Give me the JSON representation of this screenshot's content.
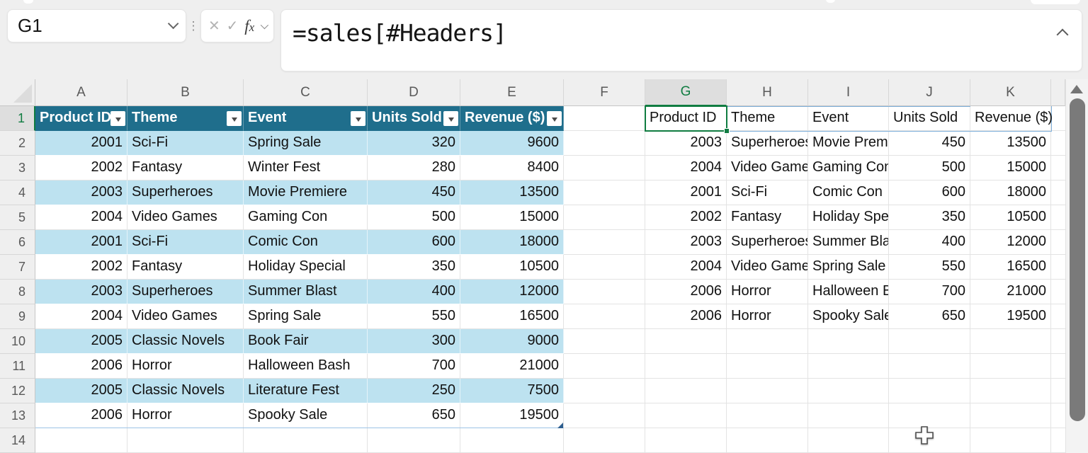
{
  "formula_bar": {
    "name_box": {
      "value": "G1"
    },
    "buttons": {
      "cancel": "✕",
      "enter": "✓",
      "insert_function_f": "f",
      "insert_function_x": "x"
    },
    "formula": "=sales[#Headers]"
  },
  "grid": {
    "column_letters": [
      "A",
      "B",
      "C",
      "D",
      "E",
      "F",
      "G",
      "H",
      "I",
      "J",
      "K"
    ],
    "row_numbers": [
      1,
      2,
      3,
      4,
      5,
      6,
      7,
      8,
      9,
      10,
      11,
      12,
      13,
      14
    ],
    "active": {
      "cell": "G1",
      "column": "G",
      "row": 1
    },
    "table": {
      "headers": [
        "Product ID",
        "Theme",
        "Event",
        "Units Sold",
        "Revenue ($)"
      ],
      "rows": [
        [
          2001,
          "Sci-Fi",
          "Spring Sale",
          320,
          9600
        ],
        [
          2002,
          "Fantasy",
          "Winter Fest",
          280,
          8400
        ],
        [
          2003,
          "Superheroes",
          "Movie Premiere",
          450,
          13500
        ],
        [
          2004,
          "Video Games",
          "Gaming Con",
          500,
          15000
        ],
        [
          2001,
          "Sci-Fi",
          "Comic Con",
          600,
          18000
        ],
        [
          2002,
          "Fantasy",
          "Holiday Special",
          350,
          10500
        ],
        [
          2003,
          "Superheroes",
          "Summer Blast",
          400,
          12000
        ],
        [
          2004,
          "Video Games",
          "Spring Sale",
          550,
          16500
        ],
        [
          2005,
          "Classic Novels",
          "Book Fair",
          300,
          9000
        ],
        [
          2006,
          "Horror",
          "Halloween Bash",
          700,
          21000
        ],
        [
          2005,
          "Classic Novels",
          "Literature Fest",
          250,
          7500
        ],
        [
          2006,
          "Horror",
          "Spooky Sale",
          650,
          19500
        ]
      ]
    },
    "spill": {
      "headers": [
        "Product ID",
        "Theme",
        "Event",
        "Units Sold",
        "Revenue ($)"
      ],
      "rows": [
        [
          2003,
          "Superheroes",
          "Movie Premiere",
          450,
          13500
        ],
        [
          2004,
          "Video Games",
          "Gaming Con",
          500,
          15000
        ],
        [
          2001,
          "Sci-Fi",
          "Comic Con",
          600,
          18000
        ],
        [
          2002,
          "Fantasy",
          "Holiday Special",
          350,
          10500
        ],
        [
          2003,
          "Superheroes",
          "Summer Blast",
          400,
          12000
        ],
        [
          2004,
          "Video Games",
          "Spring Sale",
          550,
          16500
        ],
        [
          2006,
          "Horror",
          "Halloween Bash",
          700,
          21000
        ],
        [
          2006,
          "Horror",
          "Spooky Sale",
          650,
          19500
        ]
      ]
    }
  },
  "colors": {
    "table_header_bg": "#1F6E8C",
    "band_fill": "#BDE2F0",
    "selection_green": "#107C41",
    "spill_border": "#7FB0DB",
    "grid_line": "#E3E3E3"
  }
}
